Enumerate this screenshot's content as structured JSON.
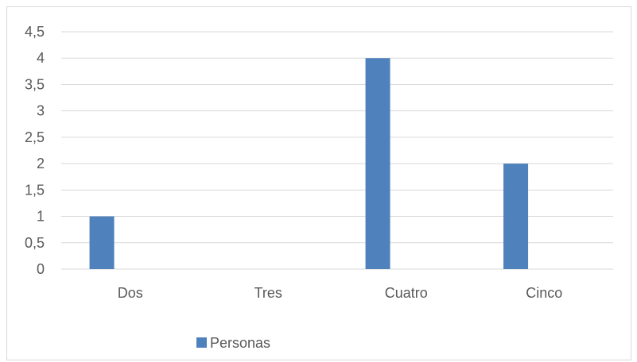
{
  "chart_data": {
    "type": "bar",
    "title": "",
    "xlabel": "",
    "ylabel": "",
    "categories": [
      "Dos",
      "Tres",
      "Cuatro",
      "Cinco"
    ],
    "series": [
      {
        "name": "Personas",
        "values": [
          1,
          0,
          4,
          2
        ],
        "color": "#4f81bd"
      }
    ],
    "ylim": [
      0,
      4.5
    ],
    "y_ticks": [
      "0",
      "0,5",
      "1",
      "1,5",
      "2",
      "2,5",
      "3",
      "3,5",
      "4",
      "4,5"
    ],
    "grid": true,
    "legend_position": "bottom"
  }
}
